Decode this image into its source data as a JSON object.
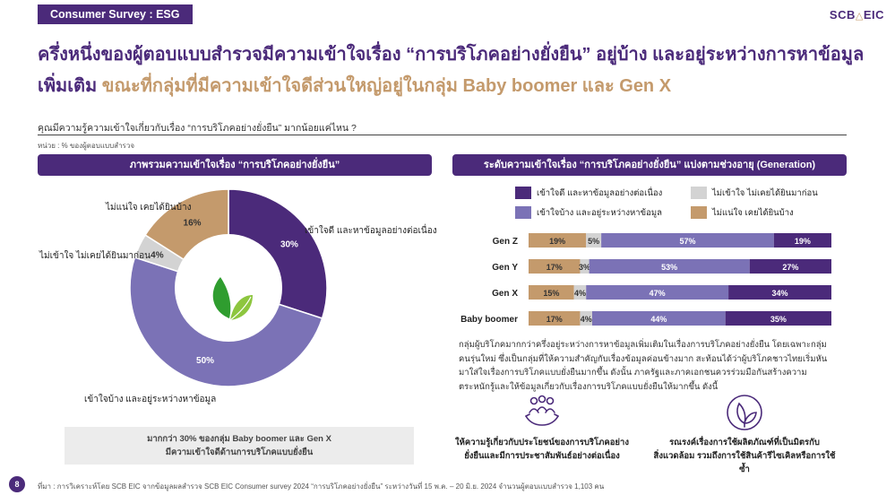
{
  "header": {
    "tag": "Consumer Survey : ESG",
    "logo": {
      "left": "SCB",
      "right": "EIC"
    },
    "title_line1": "ครึ่งหนึ่งของผู้ตอบแบบสำรวจมีความเข้าใจเรื่อง “การบริโภคอย่างยั่งยืน” อยู่บ้าง และอยู่ระหว่างการหาข้อมูล",
    "title_line2_pre": "เพิ่มเติม",
    "title_line2_rest": " ขณะที่กลุ่มที่มีความเข้าใจดีส่วนใหญ่อยู่ในกลุ่ม Baby boomer และ Gen X"
  },
  "question": "คุณมีความรู้ความเข้าใจเกี่ยวกับเรื่อง “การบริโภคอย่างยั่งยืน” มากน้อยแค่ไหน ?",
  "unit": "หน่วย : % ของผู้ตอบแบบสำรวจ",
  "left_panel": {
    "heading": "ภาพรวมความเข้าใจเรื่อง “การบริโภคอย่างยั่งยืน”"
  },
  "right_panel": {
    "heading": "ระดับความเข้าใจเรื่อง “การบริโภคอย่างยั่งยืน” แบ่งตามช่วงอายุ (Generation)"
  },
  "colors": {
    "understand_well": "#4b2a7a",
    "understand_some": "#7b72b6",
    "never_heard": "#d3d3d3",
    "unsure": "#c49a6c",
    "brand": "#4b2a7a"
  },
  "chart_data": [
    {
      "type": "pie",
      "slices": [
        {
          "name": "เข้าใจดี และหาข้อมูลอย่างต่อเนื่อง",
          "value": 30,
          "label": "30%"
        },
        {
          "name": "เข้าใจบ้าง และอยู่ระหว่างหาข้อมูล",
          "value": 50,
          "label": "50%"
        },
        {
          "name": "ไม่เข้าใจ ไม่เคยได้ยินมาก่อน",
          "value": 4,
          "label": "4%"
        },
        {
          "name": "ไม่แน่ใจ เคยได้ยินบ้าง",
          "value": 16,
          "label": "16%"
        }
      ]
    },
    {
      "type": "bar",
      "orientation": "horizontal",
      "stacked": true,
      "categories": [
        "Gen Z",
        "Gen Y",
        "Gen X",
        "Baby boomer"
      ],
      "series": [
        {
          "name": "ไม่แน่ใจ เคยได้ยินบ้าง",
          "values": [
            19,
            17,
            15,
            17
          ]
        },
        {
          "name": "ไม่เข้าใจ ไม่เคยได้ยินมาก่อน",
          "values": [
            5,
            3,
            4,
            4
          ]
        },
        {
          "name": "เข้าใจบ้าง และอยู่ระหว่างหาข้อมูล",
          "values": [
            57,
            53,
            47,
            44
          ]
        },
        {
          "name": "เข้าใจดี และหาข้อมูลอย่างต่อเนื่อง",
          "values": [
            19,
            27,
            34,
            35
          ]
        }
      ],
      "legend": [
        "เข้าใจดี และหาข้อมูลอย่างต่อเนื่อง",
        "ไม่เข้าใจ ไม่เคยได้ยินมาก่อน",
        "เข้าใจบ้าง และอยู่ระหว่างหาข้อมูล",
        "ไม่แน่ใจ เคยได้ยินบ้าง"
      ],
      "legend_position": "top"
    }
  ],
  "note": {
    "line1": "มากกว่า 30% ของกลุ่ม Baby boomer และ Gen X",
    "line2": "มีความเข้าใจดีด้านการบริโภคแบบยั่งยืน"
  },
  "commentary": "กลุ่มผู้บริโภคมากกว่าครึ่งอยู่ระหว่างการหาข้อมูลเพิ่มเติมในเรื่องการบริโภคอย่างยั่งยืน โดยเฉพาะกลุ่มคนรุ่นใหม่ ซึ่งเป็นกลุ่มที่ให้ความสำคัญกับเรื่องข้อมูลค่อนข้างมาก สะท้อนได้ว่าผู้บริโภคชาวไทยเริ่มหันมาใส่ใจเรื่องการบริโภคแบบยั่งยืนมากขึ้น ดังนั้น ภาครัฐและภาคเอกชนควรร่วมมือกันสร้างความตระหนักรู้และให้ข้อมูลเกี่ยวกับเรื่องการบริโภคแบบยั่งยืนให้มากขึ้น ดังนี้",
  "features": [
    {
      "icon": "community-hands-icon",
      "line1": "ให้ความรู้เกี่ยวกับประโยชน์ของการบริโภคอย่าง",
      "line2": "ยั่งยืนและมีการประชาสัมพันธ์อย่างต่อเนื่อง"
    },
    {
      "icon": "eco-leaf-icon",
      "line1": "รณรงค์เรื่องการใช้ผลิตภัณฑ์ที่เป็นมิตรกับ",
      "line2": "สิ่งแวดล้อม รวมถึงการใช้สินค้ารีไซเคิลหรือการใช้ซ้ำ"
    }
  ],
  "footer": {
    "page": "8",
    "source": "ที่มา : การวิเคราะห์โดย SCB EIC จากข้อมูลผลสำรวจ SCB EIC Consumer survey 2024 “การบริโภคอย่างยั่งยืน” ระหว่างวันที่ 15 พ.ค. – 20 มิ.ย. 2024 จำนวนผู้ตอบแบบสำรวจ 1,103 คน"
  }
}
